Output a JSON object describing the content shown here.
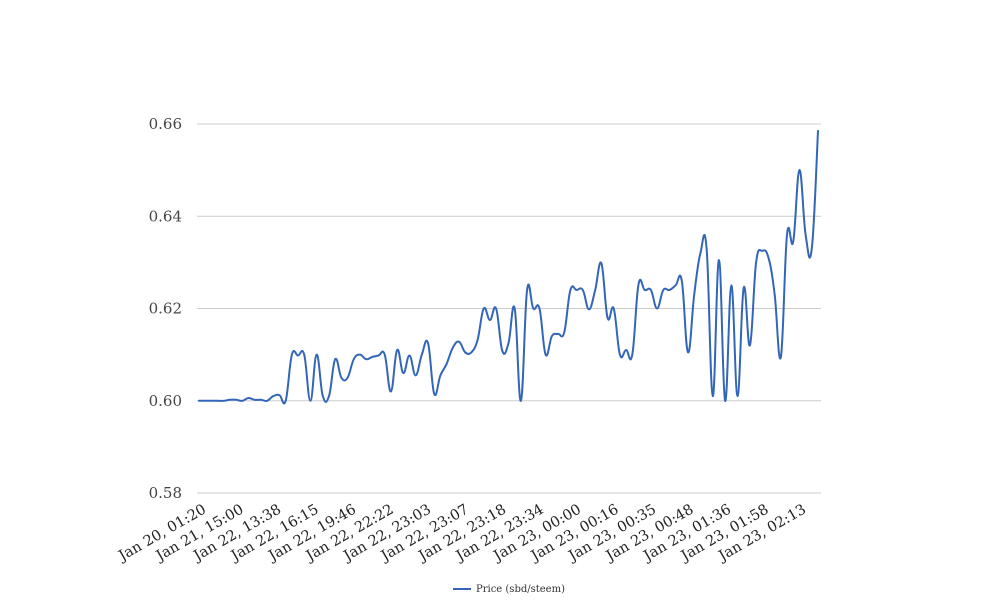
{
  "chart_data": {
    "type": "line",
    "title": "",
    "xlabel": "",
    "ylabel": "",
    "ylim": [
      0.58,
      0.66
    ],
    "yticks": [
      "0.58",
      "0.60",
      "0.62",
      "0.64",
      "0.66"
    ],
    "yticks_values": [
      0.58,
      0.6,
      0.62,
      0.64,
      0.66
    ],
    "xtick_labels": [
      "Jan 20, 01:20",
      "Jan 21, 15:00",
      "Jan 22, 13:38",
      "Jan 22, 16:15",
      "Jan 22, 19:46",
      "Jan 22, 22:22",
      "Jan 22, 23:03",
      "Jan 22, 23:07",
      "Jan 22, 23:18",
      "Jan 22, 23:34",
      "Jan 23, 00:00",
      "Jan 23, 00:16",
      "Jan 23, 00:35",
      "Jan 23, 00:48",
      "Jan 23, 01:36",
      "Jan 23, 01:58",
      "Jan 23, 02:13"
    ],
    "grid": true,
    "legend_position": "bottom",
    "series": [
      {
        "name": "Price (sbd/steem)",
        "color": "#3366b8",
        "values": [
          0.6,
          0.6,
          0.6,
          0.6,
          0.6,
          0.6002,
          0.6002,
          0.6,
          0.6006,
          0.6002,
          0.6002,
          0.6,
          0.601,
          0.6012,
          0.6,
          0.61,
          0.6098,
          0.61,
          0.6,
          0.61,
          0.601,
          0.601,
          0.609,
          0.605,
          0.605,
          0.609,
          0.61,
          0.609,
          0.6095,
          0.6098,
          0.61,
          0.602,
          0.611,
          0.606,
          0.6098,
          0.6055,
          0.61,
          0.6125,
          0.6015,
          0.6055,
          0.608,
          0.6115,
          0.6128,
          0.6105,
          0.6105,
          0.6132,
          0.62,
          0.6175,
          0.62,
          0.6108,
          0.6125,
          0.62,
          0.6,
          0.624,
          0.62,
          0.62,
          0.61,
          0.614,
          0.6145,
          0.6148,
          0.624,
          0.624,
          0.624,
          0.6198,
          0.624,
          0.6298,
          0.618,
          0.62,
          0.61,
          0.611,
          0.61,
          0.6252,
          0.624,
          0.624,
          0.62,
          0.624,
          0.624,
          0.625,
          0.626,
          0.6105,
          0.623,
          0.632,
          0.633,
          0.601,
          0.6305,
          0.6,
          0.625,
          0.601,
          0.6245,
          0.612,
          0.63,
          0.6325,
          0.631,
          0.623,
          0.6095,
          0.636,
          0.6345,
          0.65,
          0.636,
          0.633,
          0.6585
        ]
      }
    ]
  }
}
